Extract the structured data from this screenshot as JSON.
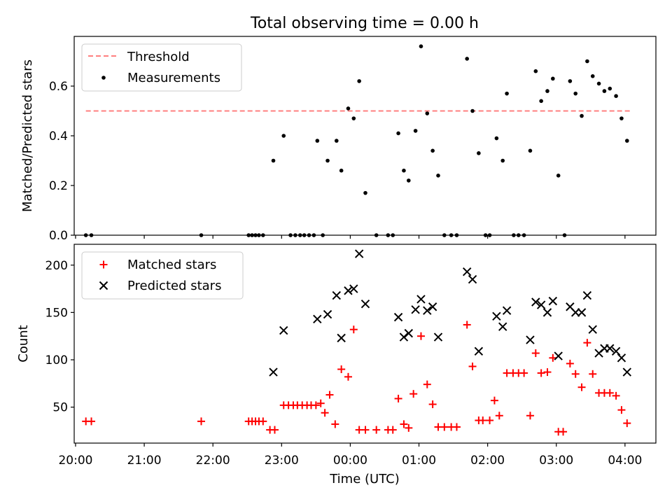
{
  "chart_data": [
    {
      "type": "scatter",
      "title": "Total observing time = 0.00 h",
      "ylabel": "Matched/Predicted stars",
      "xlabel": "",
      "ylim": [
        0,
        0.8
      ],
      "yticks": [
        0.0,
        0.2,
        0.4,
        0.6
      ],
      "ytick_labels": [
        "0.0",
        "0.2",
        "0.4",
        "0.6"
      ],
      "xlim": [
        19.98,
        28.45
      ],
      "legend_position": "top-left",
      "threshold": {
        "name": "Threshold",
        "y": 0.5,
        "x": [
          20.15,
          28.08
        ],
        "color": "#ff7f7f"
      },
      "series": [
        {
          "name": "Measurements",
          "color": "#000000",
          "x": [
            20.15,
            20.23,
            21.83,
            22.52,
            22.57,
            22.62,
            22.67,
            22.73,
            22.88,
            23.03,
            23.13,
            23.2,
            23.27,
            23.33,
            23.4,
            23.47,
            23.52,
            23.6,
            23.67,
            23.8,
            23.87,
            23.97,
            24.05,
            24.13,
            24.22,
            24.38,
            24.55,
            24.62,
            24.7,
            24.78,
            24.85,
            24.95,
            25.03,
            25.12,
            25.2,
            25.28,
            25.37,
            25.47,
            25.55,
            25.7,
            25.78,
            25.87,
            25.97,
            26.03,
            26.13,
            26.22,
            26.28,
            26.38,
            26.45,
            26.53,
            26.62,
            26.7,
            26.78,
            26.87,
            26.95,
            27.03,
            27.12,
            27.2,
            27.28,
            27.37,
            27.45,
            27.53,
            27.62,
            27.7,
            27.78,
            27.87,
            27.95,
            28.03
          ],
          "y": [
            0,
            0,
            0,
            0,
            0,
            0,
            0,
            0,
            0.3,
            0.4,
            0,
            0,
            0,
            0,
            0,
            0,
            0.38,
            0,
            0.3,
            0.38,
            0.26,
            0.51,
            0.47,
            0.62,
            0.17,
            0,
            0,
            0,
            0.41,
            0.26,
            0.22,
            0.42,
            0.76,
            0.49,
            0.34,
            0.24,
            0,
            0,
            0,
            0.71,
            0.5,
            0.33,
            0,
            0,
            0.39,
            0.3,
            0.57,
            0,
            0,
            0,
            0.34,
            0.66,
            0.54,
            0.58,
            0.63,
            0.24,
            0,
            0.62,
            0.57,
            0.48,
            0.7,
            0.64,
            0.61,
            0.58,
            0.59,
            0.56,
            0.47,
            0.38
          ]
        }
      ]
    },
    {
      "type": "scatter",
      "title": "",
      "xlabel": "Time (UTC)",
      "ylabel": "Count",
      "ylim": [
        12,
        222
      ],
      "yticks": [
        50,
        100,
        150,
        200
      ],
      "ytick_labels": [
        "50",
        "100",
        "150",
        "200"
      ],
      "xlim": [
        19.98,
        28.45
      ],
      "xticks": [
        20,
        21,
        22,
        23,
        24,
        25,
        26,
        27,
        28
      ],
      "xtick_labels": [
        "20:00",
        "21:00",
        "22:00",
        "23:00",
        "00:00",
        "01:00",
        "02:00",
        "03:00",
        "04:00"
      ],
      "legend_position": "top-left",
      "series": [
        {
          "name": "Matched stars",
          "marker": "plus",
          "color": "#ff0000",
          "x": [
            20.15,
            20.23,
            21.83,
            22.52,
            22.57,
            22.62,
            22.67,
            22.73,
            22.83,
            22.9,
            23.03,
            23.1,
            23.17,
            23.23,
            23.3,
            23.37,
            23.43,
            23.5,
            23.57,
            23.63,
            23.7,
            23.78,
            23.87,
            23.97,
            24.05,
            24.13,
            24.22,
            24.38,
            24.55,
            24.62,
            24.7,
            24.78,
            24.85,
            24.92,
            25.03,
            25.12,
            25.2,
            25.28,
            25.37,
            25.47,
            25.55,
            25.7,
            25.78,
            25.87,
            25.93,
            26.03,
            26.1,
            26.17,
            26.28,
            26.37,
            26.45,
            26.53,
            26.62,
            26.7,
            26.78,
            26.87,
            26.95,
            27.03,
            27.1,
            27.2,
            27.28,
            27.37,
            27.45,
            27.53,
            27.62,
            27.7,
            27.78,
            27.87,
            27.95,
            28.03
          ],
          "y": [
            35,
            35,
            35,
            35,
            35,
            35,
            35,
            35,
            26,
            26,
            52,
            52,
            52,
            52,
            52,
            52,
            52,
            52,
            54,
            44,
            63,
            32,
            90,
            82,
            132,
            26,
            26,
            26,
            26,
            26,
            59,
            32,
            28,
            64,
            125,
            74,
            53,
            29,
            29,
            29,
            29,
            137,
            93,
            36,
            36,
            36,
            57,
            41,
            86,
            86,
            86,
            86,
            41,
            107,
            86,
            87,
            102,
            24,
            24,
            96,
            85,
            71,
            118,
            85,
            65,
            65,
            65,
            62,
            47,
            33
          ]
        },
        {
          "name": "Predicted stars",
          "marker": "x",
          "color": "#000000",
          "x": [
            22.88,
            23.03,
            23.52,
            23.67,
            23.8,
            23.87,
            23.97,
            24.05,
            24.13,
            24.22,
            24.7,
            24.78,
            24.85,
            24.95,
            25.03,
            25.12,
            25.2,
            25.28,
            25.7,
            25.78,
            25.87,
            26.13,
            26.22,
            26.28,
            26.62,
            26.7,
            26.78,
            26.87,
            26.95,
            27.03,
            27.2,
            27.28,
            27.37,
            27.45,
            27.53,
            27.62,
            27.7,
            27.78,
            27.87,
            27.95,
            28.03
          ],
          "y": [
            87,
            131,
            143,
            148,
            168,
            123,
            173,
            175,
            212,
            159,
            145,
            124,
            128,
            153,
            164,
            152,
            156,
            124,
            193,
            185,
            109,
            146,
            135,
            152,
            121,
            161,
            158,
            150,
            162,
            104,
            156,
            150,
            150,
            168,
            132,
            107,
            112,
            112,
            109,
            102,
            87
          ]
        }
      ]
    }
  ]
}
